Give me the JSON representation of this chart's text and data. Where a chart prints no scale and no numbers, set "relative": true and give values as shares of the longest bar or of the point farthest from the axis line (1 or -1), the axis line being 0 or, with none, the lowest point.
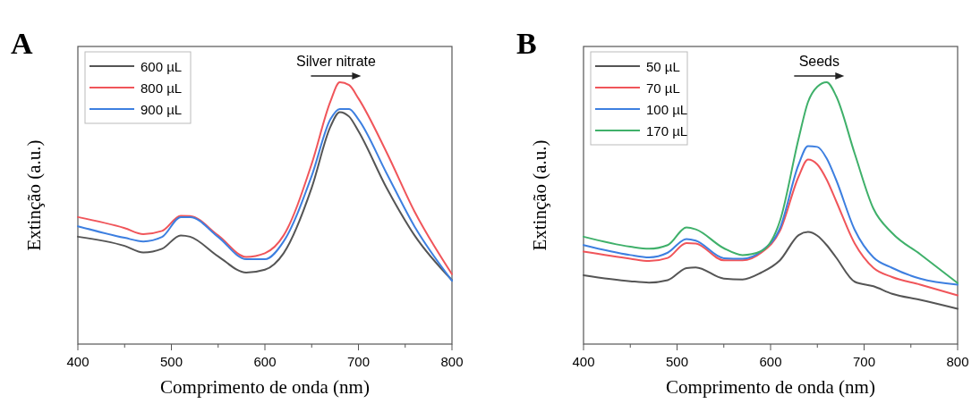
{
  "chart_data": [
    {
      "type": "line",
      "title": "A",
      "xlabel": "Comprimento de onda (nm)",
      "ylabel": "Extinção (a.u.)",
      "relative": true,
      "legend": "top left",
      "annotations": [
        "Silver nitrate"
      ],
      "x": [
        400,
        450,
        470,
        490,
        510,
        520,
        550,
        580,
        600,
        620,
        650,
        670,
        680,
        690,
        700,
        730,
        760,
        800
      ],
      "xlim": [
        400,
        800
      ],
      "xticks": [
        400,
        {
          "value": 450,
          "label": null
        },
        500,
        {
          "value": 550,
          "label": null
        },
        600,
        {
          "value": 650,
          "label": null
        },
        700,
        {
          "value": 750,
          "label": null
        },
        800
      ],
      "series": [
        {
          "name": "600 µL",
          "color": "#555555",
          "values": [
            0.41,
            0.375,
            0.35,
            0.364,
            0.415,
            0.41,
            0.335,
            0.273,
            0.284,
            0.347,
            0.597,
            0.83,
            0.886,
            0.869,
            0.813,
            0.597,
            0.415,
            0.244
          ]
        },
        {
          "name": "800 µL",
          "color": "#f0555a",
          "values": [
            0.485,
            0.443,
            0.42,
            0.432,
            0.49,
            0.489,
            0.415,
            0.333,
            0.347,
            0.415,
            0.688,
            0.926,
            1.0,
            0.989,
            0.938,
            0.733,
            0.506,
            0.267
          ]
        },
        {
          "name": "900 µL",
          "color": "#3d7fe0",
          "values": [
            0.45,
            0.406,
            0.392,
            0.409,
            0.485,
            0.485,
            0.409,
            0.324,
            0.324,
            0.392,
            0.642,
            0.858,
            0.898,
            0.898,
            0.858,
            0.653,
            0.449,
            0.242
          ]
        }
      ]
    },
    {
      "type": "line",
      "title": "B",
      "xlabel": "Comprimento de onda (nm)",
      "ylabel": "Extinção (a.u.)",
      "relative": true,
      "legend": "top left",
      "annotations": [
        "Seeds"
      ],
      "x": [
        400,
        450,
        470,
        490,
        510,
        520,
        550,
        570,
        590,
        610,
        630,
        640,
        650,
        660,
        670,
        690,
        710,
        730,
        760,
        800
      ],
      "xlim": [
        400,
        800
      ],
      "xticks": [
        400,
        {
          "value": 450,
          "label": null
        },
        500,
        {
          "value": 550,
          "label": null
        },
        600,
        {
          "value": 650,
          "label": null
        },
        700,
        {
          "value": 750,
          "label": null
        },
        800
      ],
      "series": [
        {
          "name": "50 µL",
          "color": "#555555",
          "values": [
            0.263,
            0.24,
            0.235,
            0.244,
            0.29,
            0.293,
            0.25,
            0.247,
            0.273,
            0.32,
            0.416,
            0.428,
            0.414,
            0.378,
            0.331,
            0.238,
            0.221,
            0.192,
            0.169,
            0.135
          ]
        },
        {
          "name": "70 µL",
          "color": "#f0555a",
          "values": [
            0.353,
            0.326,
            0.317,
            0.329,
            0.386,
            0.384,
            0.32,
            0.32,
            0.349,
            0.432,
            0.64,
            0.705,
            0.686,
            0.628,
            0.547,
            0.384,
            0.291,
            0.256,
            0.227,
            0.186
          ]
        },
        {
          "name": "100 µL",
          "color": "#3d7fe0",
          "values": [
            0.378,
            0.34,
            0.331,
            0.349,
            0.401,
            0.395,
            0.328,
            0.326,
            0.355,
            0.442,
            0.686,
            0.756,
            0.753,
            0.709,
            0.628,
            0.436,
            0.331,
            0.291,
            0.25,
            0.227
          ]
        },
        {
          "name": "170 µL",
          "color": "#3fb06a",
          "values": [
            0.41,
            0.372,
            0.364,
            0.378,
            0.445,
            0.438,
            0.366,
            0.34,
            0.355,
            0.47,
            0.785,
            0.924,
            0.983,
            1.0,
            0.948,
            0.727,
            0.517,
            0.424,
            0.343,
            0.233
          ]
        }
      ]
    }
  ]
}
